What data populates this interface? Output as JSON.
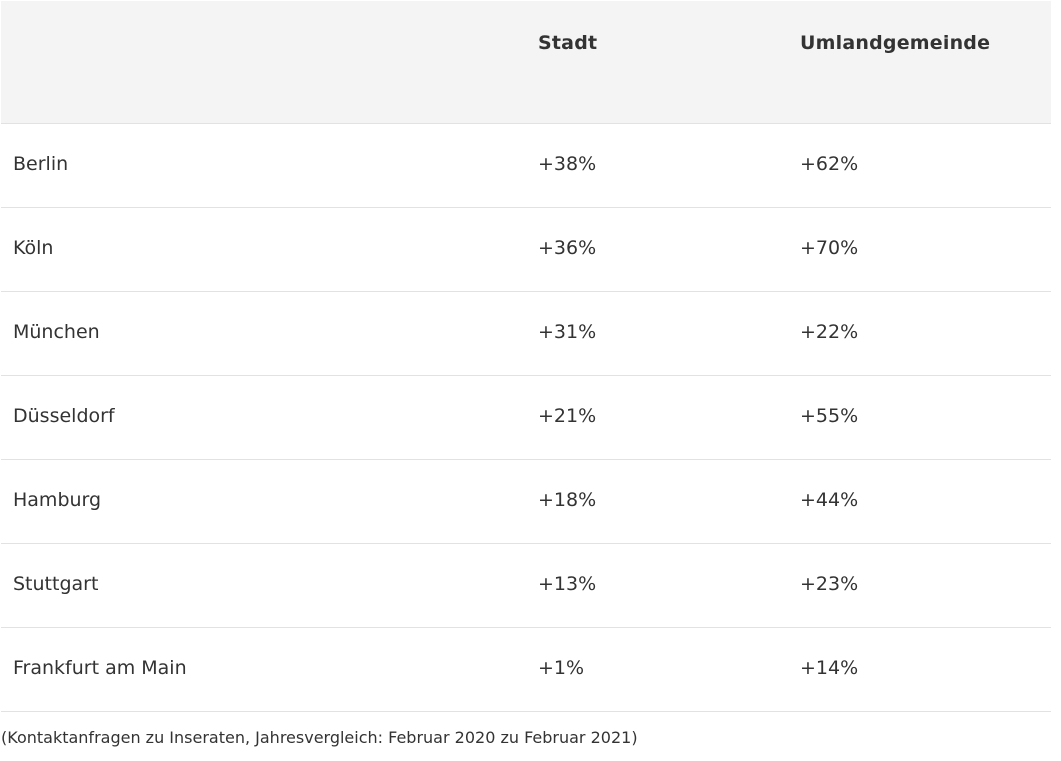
{
  "table": {
    "headers": [
      "",
      "Stadt",
      "Umlandgemeinde"
    ],
    "rows": [
      {
        "city": "Berlin",
        "stadt": "+38%",
        "umland": "+62%"
      },
      {
        "city": "Köln",
        "stadt": "+36%",
        "umland": "+70%"
      },
      {
        "city": "München",
        "stadt": "+31%",
        "umland": "+22%"
      },
      {
        "city": "Düsseldorf",
        "stadt": "+21%",
        "umland": "+55%"
      },
      {
        "city": "Hamburg",
        "stadt": "+18%",
        "umland": "+44%"
      },
      {
        "city": "Stuttgart",
        "stadt": "+13%",
        "umland": "+23%"
      },
      {
        "city": "Frankfurt am Main",
        "stadt": "+1%",
        "umland": "+14%"
      }
    ]
  },
  "footnote": "(Kontaktanfragen zu Inseraten, Jahresvergleich: Februar 2020 zu Februar 2021)"
}
